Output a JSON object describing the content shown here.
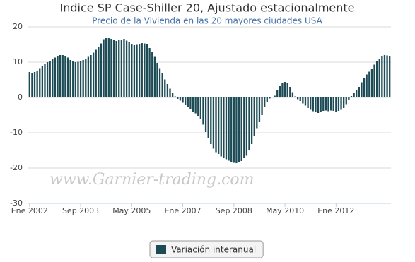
{
  "chart_data": {
    "type": "bar",
    "title": "Indice SP Case-Shiller 20, Ajustado estacionalmente",
    "subtitle": "Precio de la Vivienda en las 20 mayores ciudades USA",
    "watermark": "www.Garnier-trading.com",
    "categories": [
      "Ene 2002",
      null,
      null,
      null,
      null,
      null,
      null,
      null,
      null,
      null,
      null,
      null,
      null,
      null,
      null,
      null,
      null,
      null,
      null,
      null,
      "Sep 2003",
      null,
      null,
      null,
      null,
      null,
      null,
      null,
      null,
      null,
      null,
      null,
      null,
      null,
      null,
      null,
      null,
      null,
      null,
      null,
      "May 2005",
      null,
      null,
      null,
      null,
      null,
      null,
      null,
      null,
      null,
      null,
      null,
      null,
      null,
      null,
      null,
      null,
      null,
      null,
      null,
      "Ene 2007",
      null,
      null,
      null,
      null,
      null,
      null,
      null,
      null,
      null,
      null,
      null,
      null,
      null,
      null,
      null,
      null,
      null,
      null,
      null,
      "Sep 2008",
      null,
      null,
      null,
      null,
      null,
      null,
      null,
      null,
      null,
      null,
      null,
      null,
      null,
      null,
      null,
      null,
      null,
      null,
      null,
      "May 2010",
      null,
      null,
      null,
      null,
      null,
      null,
      null,
      null,
      null,
      null,
      null,
      null,
      null,
      null,
      null,
      null,
      null,
      null,
      null,
      "Ene 2012",
      null,
      null,
      null,
      null,
      null,
      null,
      null,
      null,
      null,
      null,
      null,
      null,
      null,
      null,
      null,
      null,
      null,
      null,
      null,
      null,
      null
    ],
    "series": [
      {
        "name": "Variación interanual",
        "color": "#1c4b55",
        "values": [
          7.2,
          7.0,
          7.2,
          7.5,
          8.3,
          9.0,
          9.5,
          10.0,
          10.3,
          10.8,
          11.3,
          11.8,
          12.0,
          12.0,
          11.8,
          11.3,
          10.6,
          10.2,
          10.0,
          10.1,
          10.3,
          10.6,
          11.0,
          11.5,
          12.0,
          12.7,
          13.5,
          14.3,
          15.3,
          16.5,
          16.8,
          16.8,
          16.6,
          16.2,
          16.0,
          16.2,
          16.4,
          16.6,
          16.1,
          15.6,
          15.0,
          14.8,
          14.9,
          15.2,
          15.4,
          15.3,
          15.0,
          14.0,
          12.8,
          11.5,
          9.8,
          8.3,
          6.8,
          5.1,
          3.8,
          2.5,
          1.4,
          0.3,
          -0.4,
          -0.9,
          -1.5,
          -2.2,
          -2.8,
          -3.4,
          -4.0,
          -4.5,
          -5.2,
          -6.0,
          -7.7,
          -9.8,
          -11.6,
          -13.2,
          -14.5,
          -15.5,
          -16.0,
          -16.7,
          -17.2,
          -17.5,
          -17.9,
          -18.3,
          -18.5,
          -18.6,
          -18.4,
          -18.0,
          -17.2,
          -16.5,
          -15.0,
          -13.2,
          -11.0,
          -8.7,
          -7.0,
          -5.0,
          -2.8,
          -1.2,
          -0.3,
          0.2,
          0.5,
          2.0,
          3.2,
          4.0,
          4.4,
          4.1,
          3.0,
          1.5,
          0.3,
          -0.5,
          -1.0,
          -1.7,
          -2.3,
          -3.0,
          -3.5,
          -3.9,
          -4.2,
          -4.4,
          -4.1,
          -3.8,
          -3.7,
          -3.9,
          -3.7,
          -3.8,
          -4.0,
          -3.8,
          -3.5,
          -3.0,
          -1.9,
          -0.7,
          0.4,
          1.2,
          2.0,
          3.0,
          4.3,
          5.5,
          6.5,
          7.3,
          8.1,
          9.3,
          10.2,
          11.0,
          11.8,
          12.0,
          11.9,
          11.7
        ]
      }
    ],
    "ylim": [
      -30,
      20
    ],
    "yticks": [
      -30,
      -20,
      -10,
      0,
      10,
      20
    ],
    "grid": true,
    "legend": "bottom"
  }
}
